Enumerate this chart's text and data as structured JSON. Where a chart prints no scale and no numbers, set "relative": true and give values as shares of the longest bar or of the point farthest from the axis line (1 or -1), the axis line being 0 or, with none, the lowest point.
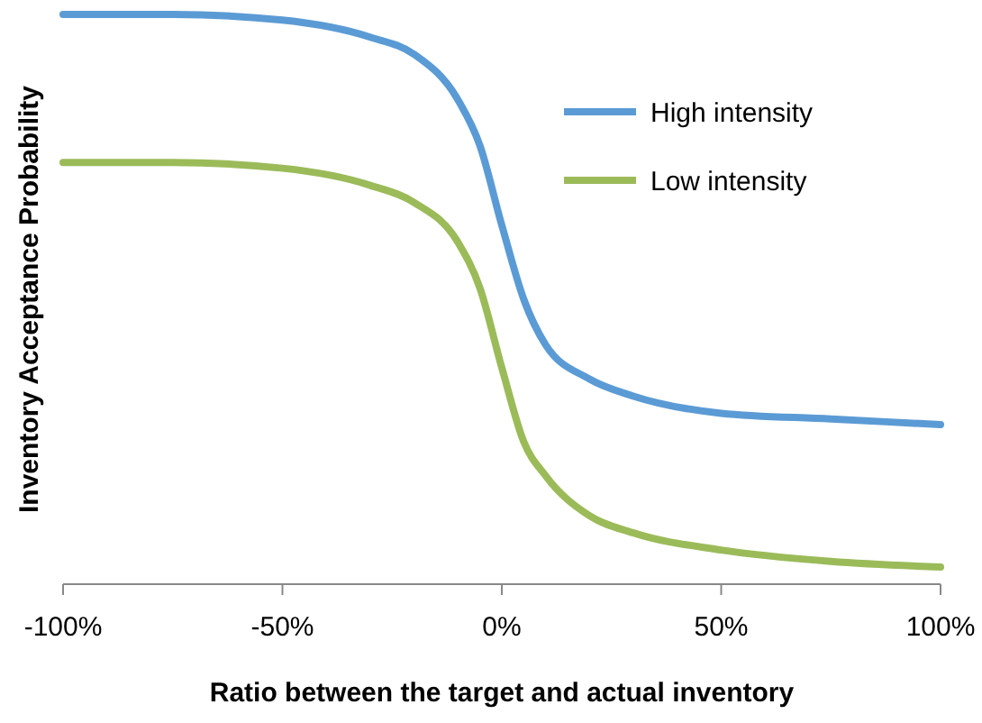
{
  "chart_data": {
    "type": "line",
    "relative": true,
    "xlabel": "Ratio  between the target and actual inventory",
    "ylabel": "Inventory Acceptance Probability",
    "x": [
      -100,
      -75,
      -50,
      -30,
      -20,
      -10,
      -5,
      0,
      5,
      10,
      20,
      30,
      50,
      75,
      100
    ],
    "xlim": [
      -100,
      100
    ],
    "xticks": [
      {
        "value": -100,
        "label": "-100%"
      },
      {
        "value": -50,
        "label": "-50%"
      },
      {
        "value": 0,
        "label": "0%"
      },
      {
        "value": 50,
        "label": "50%"
      },
      {
        "value": 100,
        "label": "100%"
      }
    ],
    "series": [
      {
        "name": "High intensity",
        "color": "#5b9bd5",
        "values": [
          1.0,
          1.0,
          0.99,
          0.96,
          0.93,
          0.85,
          0.77,
          0.63,
          0.5,
          0.42,
          0.36,
          0.33,
          0.3,
          0.29,
          0.28
        ]
      },
      {
        "name": "Low intensity",
        "color": "#9bbb59",
        "values": [
          0.74,
          0.74,
          0.73,
          0.7,
          0.67,
          0.6,
          0.52,
          0.38,
          0.25,
          0.19,
          0.12,
          0.09,
          0.06,
          0.04,
          0.03
        ]
      }
    ],
    "legend": "top right",
    "tick_labels": "x",
    "grid": false,
    "marker": "none",
    "line_style": "solid"
  }
}
